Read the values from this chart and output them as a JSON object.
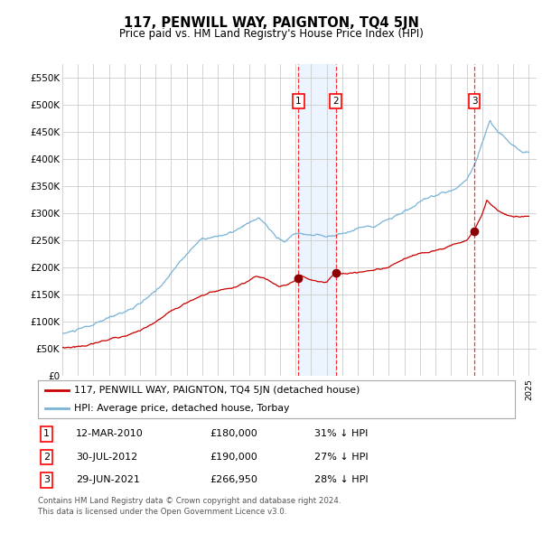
{
  "title": "117, PENWILL WAY, PAIGNTON, TQ4 5JN",
  "subtitle": "Price paid vs. HM Land Registry's House Price Index (HPI)",
  "ylim": [
    0,
    575000
  ],
  "yticks": [
    0,
    50000,
    100000,
    150000,
    200000,
    250000,
    300000,
    350000,
    400000,
    450000,
    500000,
    550000
  ],
  "ytick_labels": [
    "£0",
    "£50K",
    "£100K",
    "£150K",
    "£200K",
    "£250K",
    "£300K",
    "£350K",
    "£400K",
    "£450K",
    "£500K",
    "£550K"
  ],
  "xlim_start": 1995.0,
  "xlim_end": 2025.5,
  "hpi_color": "#7ab4d8",
  "price_color": "#cc0000",
  "marker_color": "#8b0000",
  "background_color": "#ffffff",
  "grid_color": "#cccccc",
  "transactions": [
    {
      "num": 1,
      "date_dec": 2010.19,
      "price": 180000,
      "label": "12-MAR-2010",
      "price_str": "£180,000",
      "pct": "31%",
      "dir": "↓"
    },
    {
      "num": 2,
      "date_dec": 2012.58,
      "price": 190000,
      "label": "30-JUL-2012",
      "price_str": "£190,000",
      "pct": "27%",
      "dir": "↓"
    },
    {
      "num": 3,
      "date_dec": 2021.49,
      "price": 266950,
      "label": "29-JUN-2021",
      "price_str": "£266,950",
      "pct": "28%",
      "dir": "↓"
    }
  ],
  "legend_line1": "117, PENWILL WAY, PAIGNTON, TQ4 5JN (detached house)",
  "legend_line2": "HPI: Average price, detached house, Torbay",
  "footnote": "Contains HM Land Registry data © Crown copyright and database right 2024.\nThis data is licensed under the Open Government Licence v3.0.",
  "hpi_anchors": [
    [
      1995.0,
      78000
    ],
    [
      1996.0,
      84000
    ],
    [
      1997.0,
      91000
    ],
    [
      1998.0,
      102000
    ],
    [
      1999.0,
      115000
    ],
    [
      2000.0,
      128000
    ],
    [
      2001.0,
      148000
    ],
    [
      2002.0,
      182000
    ],
    [
      2003.0,
      218000
    ],
    [
      2004.0,
      248000
    ],
    [
      2005.0,
      253000
    ],
    [
      2006.0,
      260000
    ],
    [
      2007.0,
      272000
    ],
    [
      2007.6,
      282000
    ],
    [
      2008.3,
      260000
    ],
    [
      2008.8,
      242000
    ],
    [
      2009.3,
      235000
    ],
    [
      2009.7,
      245000
    ],
    [
      2010.0,
      251000
    ],
    [
      2010.5,
      252000
    ],
    [
      2011.0,
      249000
    ],
    [
      2012.0,
      247000
    ],
    [
      2012.5,
      249000
    ],
    [
      2013.0,
      253000
    ],
    [
      2014.0,
      261000
    ],
    [
      2015.0,
      271000
    ],
    [
      2016.0,
      284000
    ],
    [
      2017.0,
      299000
    ],
    [
      2018.0,
      313000
    ],
    [
      2019.0,
      319000
    ],
    [
      2020.0,
      328000
    ],
    [
      2021.0,
      352000
    ],
    [
      2021.5,
      375000
    ],
    [
      2022.0,
      420000
    ],
    [
      2022.5,
      462000
    ],
    [
      2023.0,
      442000
    ],
    [
      2023.5,
      428000
    ],
    [
      2024.0,
      418000
    ],
    [
      2024.5,
      408000
    ],
    [
      2025.0,
      408000
    ]
  ],
  "price_anchors": [
    [
      1995.0,
      52000
    ],
    [
      1996.0,
      55000
    ],
    [
      1997.0,
      60000
    ],
    [
      1998.0,
      67000
    ],
    [
      1999.0,
      76000
    ],
    [
      2000.0,
      86000
    ],
    [
      2001.0,
      99000
    ],
    [
      2002.0,
      117000
    ],
    [
      2003.0,
      133000
    ],
    [
      2004.0,
      148000
    ],
    [
      2005.0,
      157000
    ],
    [
      2006.0,
      163000
    ],
    [
      2007.0,
      170000
    ],
    [
      2007.5,
      178000
    ],
    [
      2008.0,
      174000
    ],
    [
      2008.5,
      166000
    ],
    [
      2009.0,
      159000
    ],
    [
      2009.5,
      164000
    ],
    [
      2010.0,
      170000
    ],
    [
      2010.19,
      180000
    ],
    [
      2010.5,
      177000
    ],
    [
      2011.0,
      173000
    ],
    [
      2011.5,
      170000
    ],
    [
      2012.0,
      169000
    ],
    [
      2012.58,
      190000
    ],
    [
      2013.0,
      186000
    ],
    [
      2014.0,
      188000
    ],
    [
      2015.0,
      192000
    ],
    [
      2016.0,
      200000
    ],
    [
      2017.0,
      213000
    ],
    [
      2018.0,
      222000
    ],
    [
      2019.0,
      228000
    ],
    [
      2020.0,
      237000
    ],
    [
      2021.0,
      248000
    ],
    [
      2021.49,
      266950
    ],
    [
      2022.0,
      298000
    ],
    [
      2022.3,
      323000
    ],
    [
      2022.7,
      312000
    ],
    [
      2023.0,
      305000
    ],
    [
      2023.5,
      299000
    ],
    [
      2024.0,
      294000
    ],
    [
      2024.5,
      297000
    ],
    [
      2025.0,
      299000
    ]
  ]
}
